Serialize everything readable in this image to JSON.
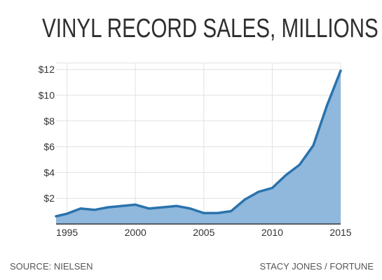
{
  "chart_data": {
    "type": "area",
    "title": "VINYL RECORD SALES, MILLIONS",
    "xlabel": "",
    "ylabel": "",
    "xlim": [
      1994.2,
      2015
    ],
    "ylim": [
      0,
      12.5
    ],
    "x_ticks": [
      1995,
      2000,
      2005,
      2010,
      2015
    ],
    "x_tick_labels": [
      "1995",
      "2000",
      "2005",
      "2010",
      "2015"
    ],
    "y_ticks": [
      2,
      4,
      6,
      8,
      10,
      12
    ],
    "y_tick_labels": [
      "$2",
      "$4",
      "$6",
      "$8",
      "$10",
      "$12"
    ],
    "grid": true,
    "series": [
      {
        "x": [
          1994.2,
          1995,
          1996,
          1997,
          1998,
          1999,
          2000,
          2001,
          2002,
          2003,
          2004,
          2005,
          2006,
          2007,
          2008,
          2009,
          2010,
          2011,
          2012,
          2013,
          2014,
          2015
        ],
        "values": [
          0.6,
          0.8,
          1.2,
          1.1,
          1.3,
          1.4,
          1.5,
          1.2,
          1.3,
          1.4,
          1.2,
          0.85,
          0.85,
          1.0,
          1.9,
          2.5,
          2.8,
          3.8,
          4.6,
          6.1,
          9.2,
          11.9
        ]
      }
    ]
  },
  "colors": {
    "line": "#2a73ad",
    "fill": "#8fb8dc",
    "grid": "#e1e1e1",
    "axis": "#333333",
    "text": "#333333"
  },
  "footer": {
    "source": "SOURCE: NIELSEN",
    "credit": "STACY JONES / FORTUNE"
  }
}
